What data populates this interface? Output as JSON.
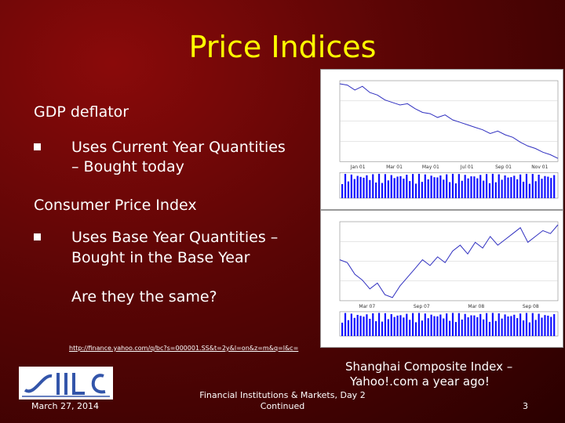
{
  "slide": {
    "title": "Price Indices",
    "section1_heading": "GDP deflator",
    "section1_bullet_line1": "Uses Current Year Quantities",
    "section1_bullet_line2": "– Bought today",
    "section2_heading": "Consumer Price Index",
    "section2_bullet_line1": "Uses Base Year Quantities –",
    "section2_bullet_line2": "Bought in the Base Year",
    "question": "Are they the same?",
    "link_text": "http://finance.yahoo.com/q/bc?s=000001.SS&t=2y&l=on&z=m&q=l&c=",
    "caption_line1": "Shanghai Composite Index –",
    "caption_line2": "Yahoo!.com a year ago!",
    "footer_date": "March 27, 2014",
    "footer_center_line1": "Financial Institutions & Markets, Day 2",
    "footer_center_line2": "Continued",
    "page_number": "3"
  },
  "colors": {
    "title": "#ffff00",
    "background": "#5a0505",
    "chart_line": "#3030c0",
    "volume_bars": "#1010ff"
  },
  "chart_data": [
    {
      "type": "line",
      "title": "",
      "series": [
        {
          "values": [
            1850,
            1840,
            1800,
            1830,
            1780,
            1760,
            1720,
            1700,
            1680,
            1690,
            1650,
            1620,
            1610,
            1580,
            1600,
            1560,
            1540,
            1520,
            1500,
            1480,
            1450,
            1470,
            1440,
            1420,
            1380,
            1350,
            1330,
            1300,
            1280,
            1250
          ]
        }
      ],
      "x_tick_labels": [
        "Jan 01",
        "Mar 01",
        "May 01",
        "Jul 01",
        "Sep 01",
        "Nov 01"
      ]
    },
    {
      "type": "line",
      "title": "",
      "series": [
        {
          "values": [
            1250,
            1240,
            1200,
            1180,
            1150,
            1170,
            1130,
            1120,
            1160,
            1190,
            1220,
            1250,
            1230,
            1260,
            1240,
            1280,
            1300,
            1270,
            1310,
            1290,
            1330,
            1300,
            1320,
            1340,
            1360,
            1310,
            1330,
            1350,
            1340,
            1370
          ]
        }
      ],
      "x_tick_labels": [
        "Mar 07",
        "Sep 07",
        "Mar 08",
        "Sep 08"
      ]
    }
  ]
}
